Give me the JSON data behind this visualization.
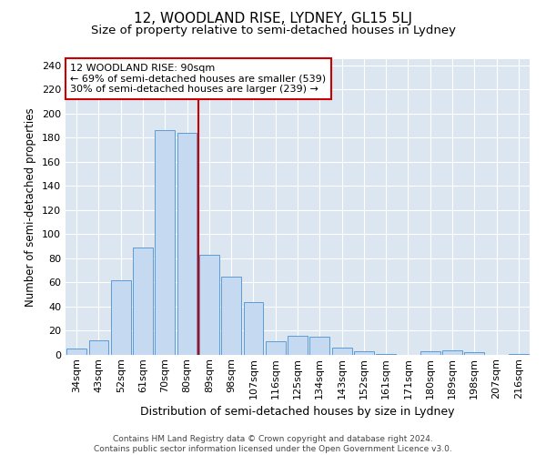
{
  "title": "12, WOODLAND RISE, LYDNEY, GL15 5LJ",
  "subtitle": "Size of property relative to semi-detached houses in Lydney",
  "xlabel": "Distribution of semi-detached houses by size in Lydney",
  "ylabel": "Number of semi-detached properties",
  "categories": [
    "34sqm",
    "43sqm",
    "52sqm",
    "61sqm",
    "70sqm",
    "80sqm",
    "89sqm",
    "98sqm",
    "107sqm",
    "116sqm",
    "125sqm",
    "134sqm",
    "143sqm",
    "152sqm",
    "161sqm",
    "171sqm",
    "180sqm",
    "189sqm",
    "198sqm",
    "207sqm",
    "216sqm"
  ],
  "values": [
    5,
    12,
    62,
    89,
    186,
    184,
    83,
    65,
    44,
    11,
    16,
    15,
    6,
    3,
    1,
    0,
    3,
    4,
    2,
    0,
    1
  ],
  "bar_color": "#c5d9f1",
  "bar_edge_color": "#5b9bd5",
  "vline_index": 6,
  "vline_color": "#cc0000",
  "annotation_line1": "12 WOODLAND RISE: 90sqm",
  "annotation_line2": "← 69% of semi-detached houses are smaller (539)",
  "annotation_line3": "30% of semi-detached houses are larger (239) →",
  "annotation_box_facecolor": "#ffffff",
  "annotation_box_edgecolor": "#cc0000",
  "footer": "Contains HM Land Registry data © Crown copyright and database right 2024.\nContains public sector information licensed under the Open Government Licence v3.0.",
  "ylim": [
    0,
    245
  ],
  "yticks": [
    0,
    20,
    40,
    60,
    80,
    100,
    120,
    140,
    160,
    180,
    200,
    220,
    240
  ],
  "plot_bg_color": "#dce6f1",
  "grid_color": "#ffffff",
  "title_fontsize": 11,
  "subtitle_fontsize": 9.5,
  "xlabel_fontsize": 9,
  "ylabel_fontsize": 8.5,
  "tick_fontsize": 8,
  "annotation_fontsize": 8,
  "footer_fontsize": 6.5
}
